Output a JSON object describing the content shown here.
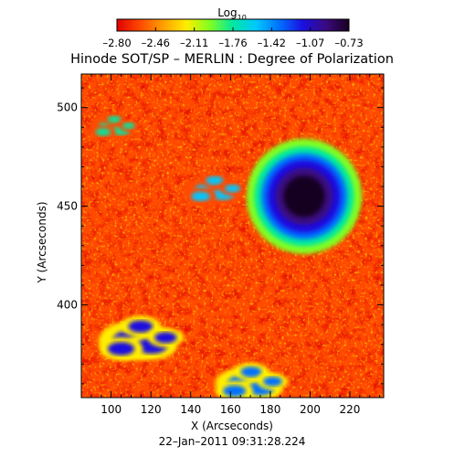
{
  "chart_data": {
    "type": "heatmap",
    "title": "Hinode SOT/SP – MERLIN : Degree of Polarization",
    "xlabel": "X (Arcseconds)",
    "ylabel": "Y (Arcseconds)",
    "timestamp": "22–Jan–2011 09:31:28.224",
    "xlim": [
      85,
      237
    ],
    "ylim": [
      353,
      517
    ],
    "x_ticks": [
      100,
      120,
      140,
      160,
      180,
      200,
      220
    ],
    "y_ticks": [
      400,
      450,
      500
    ],
    "colorbar": {
      "label": "Log",
      "label_subscript": "10",
      "min": -2.8,
      "max": -0.73,
      "tick_labels": [
        "–2.80",
        "–2.46",
        "–2.11",
        "–1.76",
        "–1.42",
        "–1.07",
        "–0.73"
      ],
      "colors": [
        "#e00000",
        "#ff4a00",
        "#ffa000",
        "#ffee00",
        "#80ff20",
        "#00e8a0",
        "#00c8ff",
        "#0070ff",
        "#1a10e0",
        "#3a0a80",
        "#180020"
      ]
    },
    "features": [
      {
        "kind": "sunspot",
        "x": 197,
        "y": 455,
        "radius": 20,
        "value": -0.8
      },
      {
        "kind": "plage",
        "x": 112,
        "y": 382,
        "radius": 14,
        "value": -1.2
      },
      {
        "kind": "network",
        "x": 150,
        "y": 458,
        "radius": 10,
        "value": -1.6
      },
      {
        "kind": "network",
        "x": 100,
        "y": 490,
        "radius": 8,
        "value": -1.7
      },
      {
        "kind": "network",
        "x": 168,
        "y": 360,
        "radius": 12,
        "value": -1.3
      }
    ]
  }
}
